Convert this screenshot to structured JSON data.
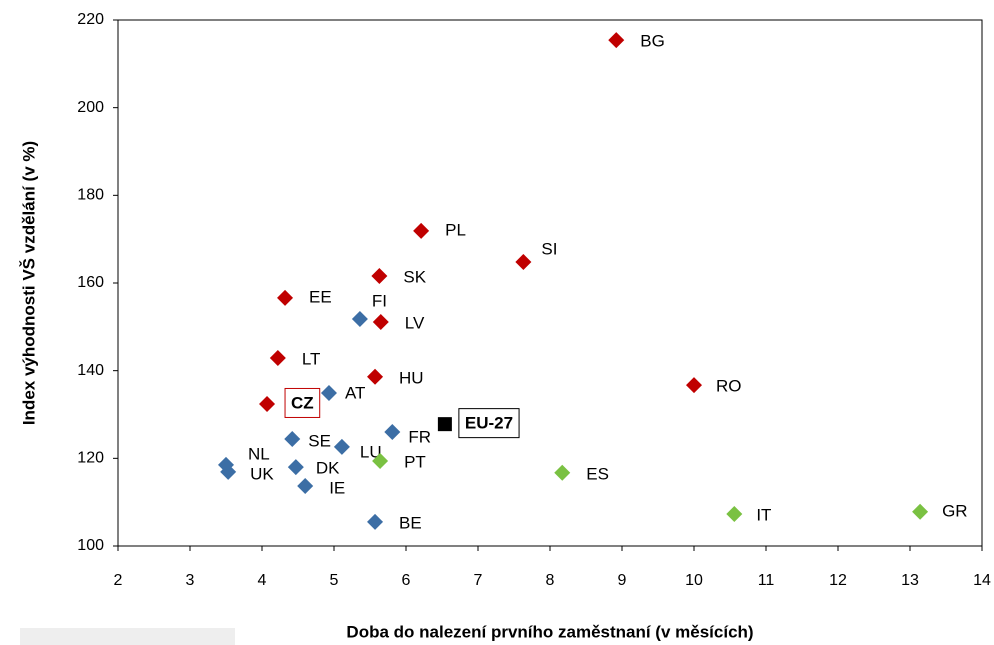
{
  "chart_data": {
    "type": "scatter",
    "xlabel": "Doba do nalezení prvního zaměstnaní (v měsících)",
    "ylabel": "Index výhodnosti VŠ vzdělání (v %)",
    "xlim": [
      2,
      14
    ],
    "xticks": [
      2,
      3,
      4,
      5,
      6,
      7,
      8,
      9,
      10,
      11,
      12,
      13,
      14
    ],
    "ylim": [
      100,
      220
    ],
    "yticks": [
      100,
      120,
      140,
      160,
      180,
      200,
      220
    ],
    "grid": false,
    "series": [
      {
        "color": "#c00000",
        "marker": "diamond",
        "labels": [
          "BG",
          "PL",
          "SI",
          "SK",
          "EE",
          "LV",
          "LT",
          "HU",
          "RO",
          "CZ"
        ],
        "x": [
          8.92,
          6.21,
          7.63,
          5.63,
          4.32,
          5.65,
          4.22,
          5.57,
          10.0,
          4.07
        ],
        "values": [
          215.4,
          171.9,
          164.8,
          161.6,
          156.6,
          151.1,
          142.9,
          138.6,
          136.7,
          132.4
        ]
      },
      {
        "color": "#3c6ea5",
        "marker": "diamond",
        "labels": [
          "FI",
          "AT",
          "FR",
          "SE",
          "LU",
          "NL",
          "DK",
          "UK",
          "IE",
          "BE"
        ],
        "x": [
          5.36,
          4.93,
          5.81,
          4.42,
          5.11,
          3.5,
          4.47,
          3.53,
          4.6,
          5.57
        ],
        "values": [
          151.8,
          134.9,
          126.0,
          124.4,
          122.6,
          118.5,
          118.0,
          116.9,
          113.7,
          105.5
        ]
      },
      {
        "color": "#7ac142",
        "marker": "diamond",
        "labels": [
          "PT",
          "ES",
          "IT",
          "GR"
        ],
        "x": [
          5.64,
          8.17,
          10.56,
          13.14
        ],
        "values": [
          119.4,
          116.7,
          107.3,
          107.8
        ]
      },
      {
        "color": "#000000",
        "marker": "square",
        "labels": [
          "EU-27"
        ],
        "x": [
          6.54
        ],
        "values": [
          127.8
        ]
      }
    ]
  }
}
